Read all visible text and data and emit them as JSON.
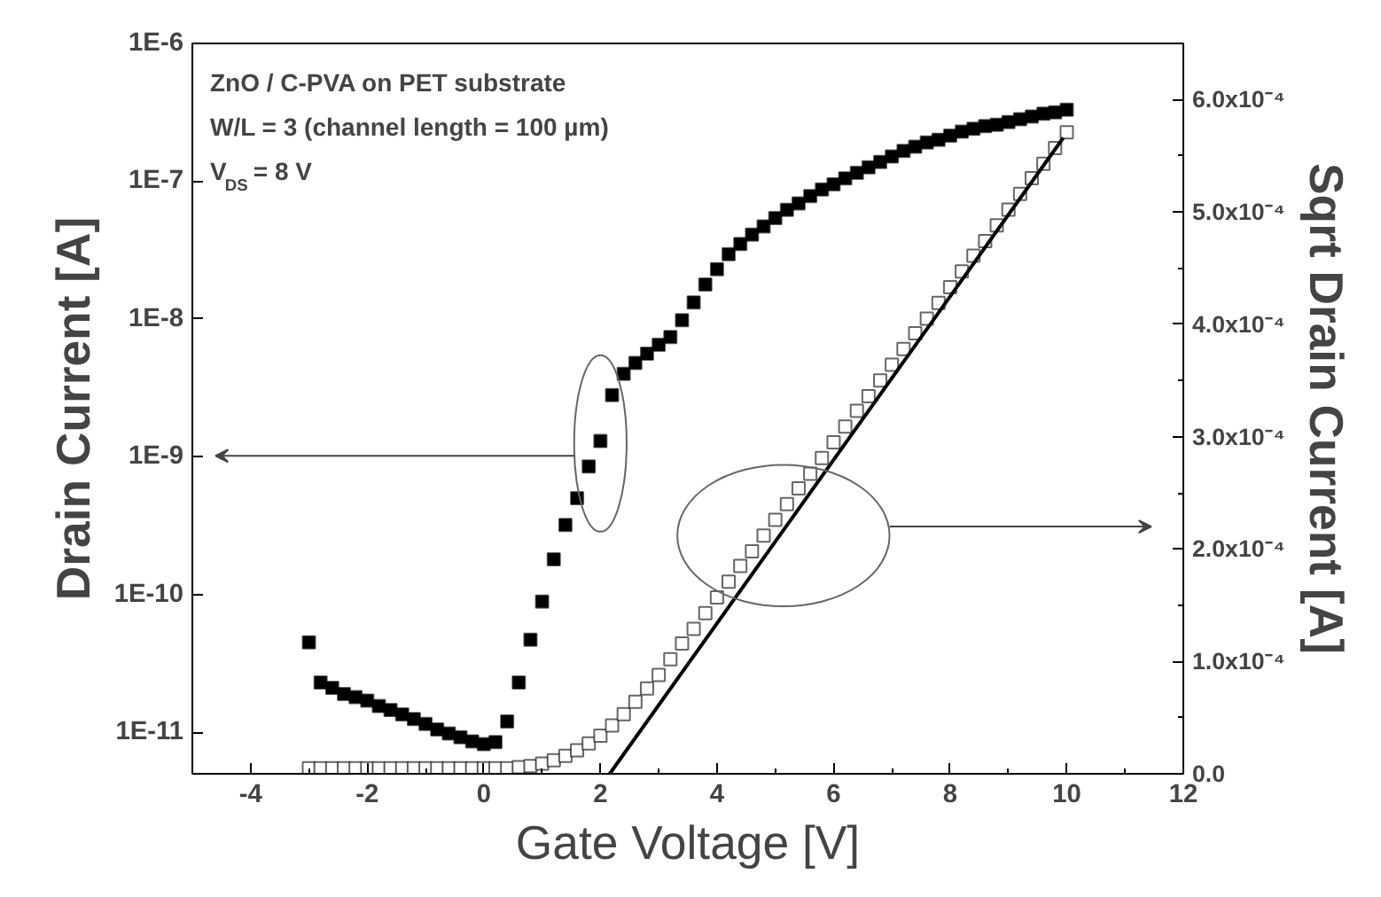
{
  "chart_data": {
    "type": "scatter",
    "xlabel": "Gate Voltage [V]",
    "ylabel": "Drain Current [A]",
    "y2label": "Sqrt Drain Current [A]",
    "annotations": [
      "ZnO / C-PVA on PET substrate",
      "W/L = 3 (channel length = 100 µm)",
      "V$_{DS}$ = 8 V"
    ],
    "log": "y",
    "grid": false,
    "xlim": [
      -5,
      12
    ],
    "xticks": [
      -4,
      {
        "value": -3,
        "label": null
      },
      -2,
      {
        "value": -1,
        "label": null
      },
      0,
      {
        "value": 1,
        "label": null
      },
      2,
      {
        "value": 3,
        "label": null
      },
      4,
      {
        "value": 5,
        "label": null
      },
      6,
      {
        "value": 7,
        "label": null
      },
      8,
      {
        "value": 9,
        "label": null
      },
      10,
      {
        "value": 11,
        "label": null
      },
      12
    ],
    "ylim": [
      5e-12,
      1e-06
    ],
    "yticks": [
      {
        "value": 1e-11,
        "label": "1E-11"
      },
      {
        "value": 1e-10,
        "label": "1E-10"
      },
      {
        "value": 1e-09,
        "label": "1E-9"
      },
      {
        "value": 1e-08,
        "label": "1E-8"
      },
      {
        "value": 1e-07,
        "label": "1E-7"
      },
      {
        "value": 1e-06,
        "label": "1E-6"
      }
    ],
    "y2lim": [
      0,
      0.00065
    ],
    "y2ticks": [
      {
        "value": 0,
        "label": "0.0"
      },
      {
        "value": 5e-05,
        "label": null
      },
      {
        "value": 0.0001,
        "label": "1.0x10⁻⁴"
      },
      {
        "value": 0.00015,
        "label": null
      },
      {
        "value": 0.0002,
        "label": "2.0x10⁻⁴"
      },
      {
        "value": 0.00025,
        "label": null
      },
      {
        "value": 0.0003,
        "label": "3.0x10⁻⁴"
      },
      {
        "value": 0.00035,
        "label": null
      },
      {
        "value": 0.0004,
        "label": "4.0x10⁻⁴"
      },
      {
        "value": 0.00045,
        "label": null
      },
      {
        "value": 0.0005,
        "label": "5.0x10⁻⁴"
      },
      {
        "value": 0.00055,
        "label": null
      },
      {
        "value": 0.0006,
        "label": "6.0x10⁻⁴"
      }
    ],
    "x": [
      -3,
      -2.8,
      -2.6,
      -2.4,
      -2.2,
      -2,
      -1.8,
      -1.6,
      -1.4,
      -1.2,
      -1,
      -0.8,
      -0.6,
      -0.4,
      -0.2,
      0,
      0.2,
      0.4,
      0.6,
      0.8,
      1,
      1.2,
      1.4,
      1.6,
      1.8,
      2,
      2.2,
      2.4,
      2.6,
      2.8,
      3,
      3.2,
      3.4,
      3.6,
      3.8,
      4,
      4.2,
      4.4,
      4.6,
      4.8,
      5,
      5.2,
      5.4,
      5.6,
      5.8,
      6,
      6.2,
      6.4,
      6.6,
      6.8,
      7,
      7.2,
      7.4,
      7.6,
      7.8,
      8,
      8.2,
      8.4,
      8.6,
      8.8,
      9,
      9.2,
      9.4,
      9.6,
      9.8,
      10
    ],
    "series": [
      {
        "marker": "square",
        "color": "#000000",
        "values": [
          4.5e-11,
          2.3e-11,
          2.1e-11,
          1.9e-11,
          1.8e-11,
          1.7e-11,
          1.55e-11,
          1.45e-11,
          1.35e-11,
          1.25e-11,
          1.15e-11,
          1.05e-11,
          9.8e-12,
          9.2e-12,
          8.6e-12,
          8.2e-12,
          8.5e-12,
          1.2e-11,
          2.3e-11,
          4.7e-11,
          8.9e-11,
          1.8e-10,
          3.2e-10,
          5e-10,
          8.5e-10,
          1.3e-09,
          2.8e-09,
          4e-09,
          4.8e-09,
          5.6e-09,
          6.5e-09,
          7.4e-09,
          9.8e-09,
          1.32e-08,
          1.78e-08,
          2.3e-08,
          2.95e-08,
          3.5e-08,
          4.1e-08,
          4.7e-08,
          5.4e-08,
          6.2e-08,
          6.9e-08,
          7.8e-08,
          8.7e-08,
          9.5e-08,
          1.05e-07,
          1.15e-07,
          1.26e-07,
          1.38e-07,
          1.51e-07,
          1.66e-07,
          1.78e-07,
          1.91e-07,
          2e-07,
          2.14e-07,
          2.29e-07,
          2.4e-07,
          2.51e-07,
          2.57e-07,
          2.69e-07,
          2.82e-07,
          2.95e-07,
          3.09e-07,
          3.16e-07,
          3.3e-07
        ]
      },
      {
        "marker": "square",
        "axis": "y2",
        "color": "#ffffff",
        "values": [
          5e-06,
          5e-06,
          5e-06,
          5e-06,
          5e-06,
          5e-06,
          5e-06,
          5e-06,
          5e-06,
          5e-06,
          5e-06,
          5e-06,
          5e-06,
          5e-06,
          5e-06,
          5e-06,
          5e-06,
          5e-06,
          6e-06,
          7e-06,
          9e-06,
          1.2e-05,
          1.6e-05,
          2.1e-05,
          2.7e-05,
          3.4e-05,
          4.3e-05,
          5.3e-05,
          6.4e-05,
          7.6e-05,
          8.8e-05,
          0.000102,
          0.000116,
          0.000129,
          0.000143,
          0.000157,
          0.000171,
          0.000185,
          0.000198,
          0.000212,
          0.000226,
          0.00024,
          0.000254,
          0.000267,
          0.000281,
          0.000295,
          0.000309,
          0.000323,
          0.000336,
          0.00035,
          0.000364,
          0.000378,
          0.000392,
          0.000405,
          0.000419,
          0.000433,
          0.000447,
          0.000461,
          0.000474,
          0.000488,
          0.000502,
          0.000516,
          0.00053,
          0.000543,
          0.000557,
          0.000571
        ]
      },
      {
        "type": "line",
        "axis": "y2",
        "color": "#000000",
        "x": [
          2.16,
          9.94
        ],
        "values": [
          0,
          0.000566
        ]
      }
    ]
  }
}
